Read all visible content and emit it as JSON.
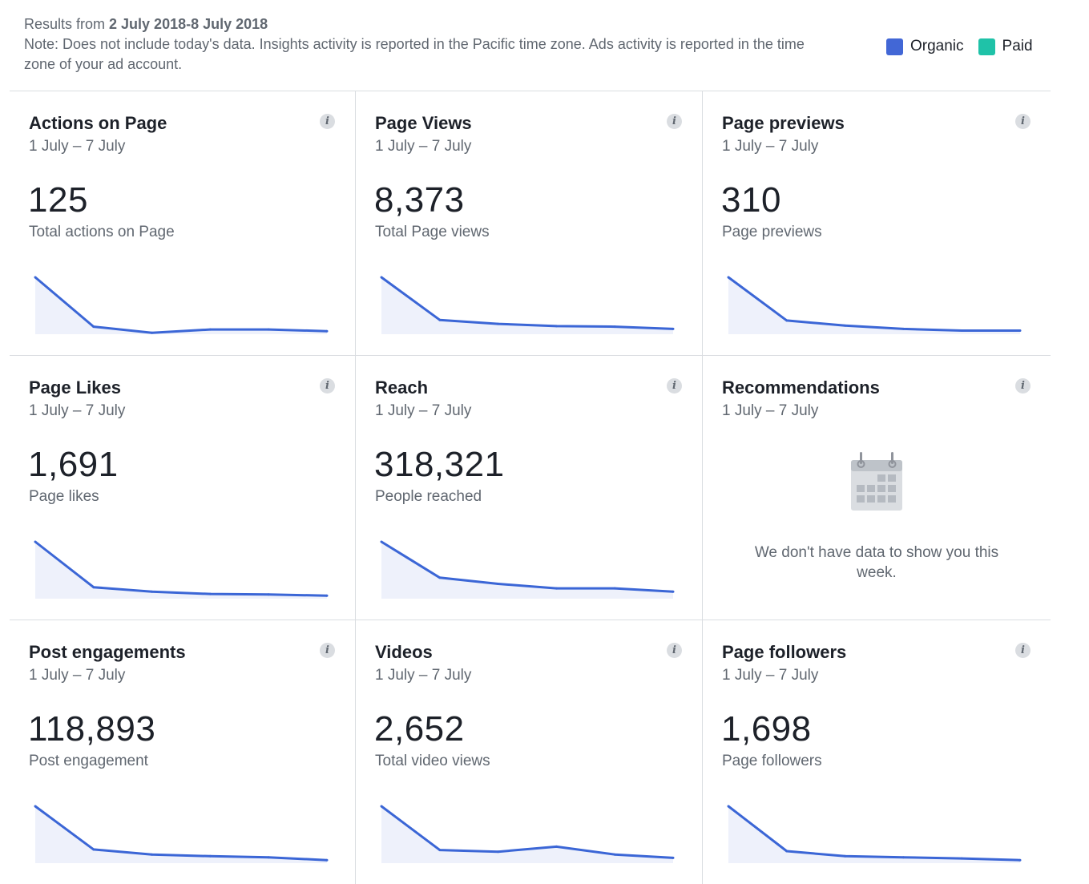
{
  "header": {
    "results_prefix": "Results from ",
    "date_range": "2 July 2018-8 July 2018",
    "note": "Note: Does not include today's data. Insights activity is reported in the Pacific time zone. Ads activity is reported in the time zone of your ad account."
  },
  "legend": {
    "organic": {
      "label": "Organic",
      "color": "#4267d6"
    },
    "paid": {
      "label": "Paid",
      "color": "#1fc2a8"
    }
  },
  "colors": {
    "line": "#3b66d6",
    "fill": "#eef1fb"
  },
  "cards": [
    {
      "title": "Actions on Page",
      "date": "1 July – 7 July",
      "value": "125",
      "caption": "Total actions on Page"
    },
    {
      "title": "Page Views",
      "date": "1 July – 7 July",
      "value": "8,373",
      "caption": "Total Page views"
    },
    {
      "title": "Page previews",
      "date": "1 July – 7 July",
      "value": "310",
      "caption": "Page previews"
    },
    {
      "title": "Page Likes",
      "date": "1 July – 7 July",
      "value": "1,691",
      "caption": "Page likes"
    },
    {
      "title": "Reach",
      "date": "1 July – 7 July",
      "value": "318,321",
      "caption": "People reached"
    },
    {
      "title": "Recommendations",
      "date": "1 July – 7 July",
      "empty_message": "We don't have data to show you this week.",
      "empty_icon": "calendar-icon"
    },
    {
      "title": "Post engagements",
      "date": "1 July – 7 July",
      "value": "118,893",
      "caption": "Post engagement"
    },
    {
      "title": "Videos",
      "date": "1 July – 7 July",
      "value": "2,652",
      "caption": "Total video views"
    },
    {
      "title": "Page followers",
      "date": "1 July – 7 July",
      "value": "1,698",
      "caption": "Page followers"
    }
  ],
  "chart_data": [
    {
      "type": "area",
      "series": [
        {
          "values": [
            1.0,
            0.12,
            0.01,
            0.07,
            0.07,
            0.04
          ]
        }
      ],
      "ylim": [
        0,
        1
      ]
    },
    {
      "type": "area",
      "series": [
        {
          "values": [
            1.0,
            0.24,
            0.17,
            0.13,
            0.12,
            0.08
          ]
        }
      ],
      "ylim": [
        0,
        1
      ]
    },
    {
      "type": "area",
      "series": [
        {
          "values": [
            1.0,
            0.23,
            0.14,
            0.08,
            0.05,
            0.05
          ]
        }
      ],
      "ylim": [
        0,
        1
      ]
    },
    {
      "type": "area",
      "series": [
        {
          "values": [
            1.0,
            0.19,
            0.11,
            0.07,
            0.06,
            0.04
          ]
        }
      ],
      "ylim": [
        0,
        1
      ]
    },
    {
      "type": "area",
      "series": [
        {
          "values": [
            1.0,
            0.36,
            0.25,
            0.17,
            0.17,
            0.11
          ]
        }
      ],
      "ylim": [
        0,
        1
      ]
    },
    null,
    {
      "type": "area",
      "series": [
        {
          "values": [
            1.0,
            0.23,
            0.14,
            0.11,
            0.09,
            0.04
          ]
        }
      ],
      "ylim": [
        0,
        1
      ]
    },
    {
      "type": "area",
      "series": [
        {
          "values": [
            1.0,
            0.22,
            0.19,
            0.28,
            0.14,
            0.08
          ]
        }
      ],
      "ylim": [
        0,
        1
      ]
    },
    {
      "type": "area",
      "series": [
        {
          "values": [
            1.0,
            0.2,
            0.11,
            0.09,
            0.07,
            0.04
          ]
        }
      ],
      "ylim": [
        0,
        1
      ]
    }
  ]
}
